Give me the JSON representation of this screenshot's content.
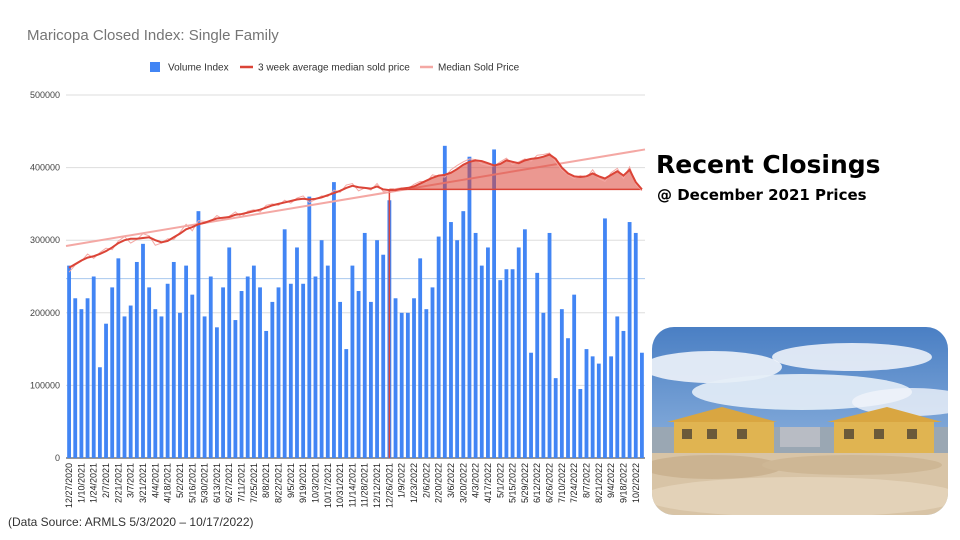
{
  "chart_data": {
    "type": "bar",
    "title": "Maricopa Closed Index: Single Family",
    "xlabel": "",
    "ylabel": "",
    "ylim": [
      0,
      500000
    ],
    "y_ticks": [
      0,
      100000,
      200000,
      300000,
      400000,
      500000
    ],
    "x_tick_labels": [
      "12/27/2020",
      "1/10/2021",
      "1/24/2021",
      "2/7/2021",
      "2/21/2021",
      "3/7/2021",
      "3/21/2021",
      "4/4/2021",
      "4/18/2021",
      "5/2/2021",
      "5/16/2021",
      "5/30/2021",
      "6/13/2021",
      "6/27/2021",
      "7/11/2021",
      "7/25/2021",
      "8/8/2021",
      "8/22/2021",
      "9/5/2021",
      "9/19/2021",
      "10/3/2021",
      "10/17/2021",
      "10/31/2021",
      "11/14/2021",
      "11/28/2021",
      "12/12/2021",
      "12/26/2021",
      "1/9/2022",
      "1/23/2022",
      "2/6/2022",
      "2/20/2022",
      "3/6/2022",
      "3/20/2022",
      "4/3/2022",
      "4/17/2022",
      "5/1/2022",
      "5/15/2022",
      "5/29/2022",
      "6/12/2022",
      "6/26/2022",
      "7/10/2022",
      "7/24/2022",
      "8/7/2022",
      "8/21/2022",
      "9/4/2022",
      "9/18/2022",
      "10/2/2022"
    ],
    "legend_position": "top",
    "grid": true,
    "series": [
      {
        "name": "Volume Index",
        "color": "#4285f4",
        "style": "bar",
        "values": [
          265000,
          220000,
          205000,
          220000,
          250000,
          125000,
          185000,
          235000,
          275000,
          195000,
          210000,
          270000,
          295000,
          235000,
          205000,
          195000,
          240000,
          270000,
          200000,
          265000,
          225000,
          340000,
          195000,
          250000,
          180000,
          235000,
          290000,
          190000,
          230000,
          250000,
          265000,
          235000,
          175000,
          215000,
          235000,
          315000,
          240000,
          290000,
          240000,
          360000,
          250000,
          300000,
          265000,
          380000,
          215000,
          150000,
          265000,
          230000,
          310000,
          215000,
          300000,
          280000,
          355000,
          220000,
          200000,
          200000,
          220000,
          275000,
          205000,
          235000,
          305000,
          430000,
          325000,
          300000,
          340000,
          415000,
          310000,
          265000,
          290000,
          425000,
          245000,
          260000,
          260000,
          290000,
          315000,
          145000,
          255000,
          200000,
          310000,
          110000,
          205000,
          165000,
          225000,
          95000,
          150000,
          140000,
          130000,
          330000,
          140000,
          195000,
          175000,
          325000,
          310000,
          145000
        ]
      },
      {
        "name": "3 week average median sold price",
        "color": "#db4437",
        "style": "line",
        "values": [
          262000,
          267000,
          272000,
          276000,
          278000,
          281000,
          285000,
          290000,
          296000,
          300000,
          302000,
          302000,
          303000,
          304000,
          300000,
          297000,
          299000,
          304000,
          309000,
          315000,
          318000,
          322000,
          324000,
          327000,
          330000,
          331000,
          332000,
          335000,
          336000,
          338000,
          340000,
          342000,
          345000,
          348000,
          350000,
          352000,
          354000,
          356000,
          357000,
          356000,
          357000,
          359000,
          362000,
          365000,
          368000,
          372000,
          375000,
          373000,
          372000,
          371000,
          374000,
          370000,
          369000,
          369000,
          371000,
          372000,
          374000,
          378000,
          382000,
          386000,
          389000,
          390000,
          393000,
          398000,
          404000,
          408000,
          410000,
          409000,
          406000,
          403000,
          405000,
          410000,
          408000,
          406000,
          410000,
          412000,
          413000,
          415000,
          418000,
          412000,
          400000,
          392000,
          388000,
          387000,
          388000,
          392000,
          388000,
          385000,
          390000,
          395000,
          389000,
          397000,
          380000,
          370000
        ]
      },
      {
        "name": "Median Sold Price",
        "color": "#f4a8a4",
        "style": "line",
        "trend_start": 292000,
        "trend_end": 425000,
        "values": [
          256000,
          266000,
          271000,
          281000,
          275000,
          283000,
          289000,
          287000,
          299000,
          305000,
          296000,
          301000,
          309000,
          306000,
          293000,
          296000,
          302000,
          301000,
          311000,
          322000,
          313000,
          327000,
          326000,
          326000,
          334000,
          329000,
          333000,
          339000,
          332000,
          340000,
          342000,
          339000,
          348000,
          350000,
          348000,
          355000,
          351000,
          358000,
          361000,
          352000,
          356000,
          361000,
          360000,
          369000,
          366000,
          376000,
          378000,
          368000,
          372000,
          369000,
          378000,
          367000,
          366000,
          371000,
          372000,
          371000,
          377000,
          381000,
          380000,
          390000,
          388000,
          387000,
          397000,
          403000,
          408000,
          412000,
          411000,
          405000,
          403000,
          402000,
          408000,
          413000,
          404000,
          408000,
          412000,
          409000,
          417000,
          418000,
          420000,
          408000,
          397000,
          390000,
          385000,
          389000,
          386000,
          397000,
          385000,
          381000,
          393000,
          399000,
          385000,
          401000,
          377000,
          368000
        ]
      }
    ],
    "highlight": {
      "reference_value": 370000,
      "start_index": 52,
      "color": "#db4437"
    }
  },
  "side_panel": {
    "title": "Recent Closings",
    "subtitle": "@ December 2021 Prices"
  },
  "photo": {
    "icon": "house-construction-photo"
  },
  "footer": {
    "source": "(Data Source:  ARMLS 5/3/2020 – 10/17/2022)"
  }
}
